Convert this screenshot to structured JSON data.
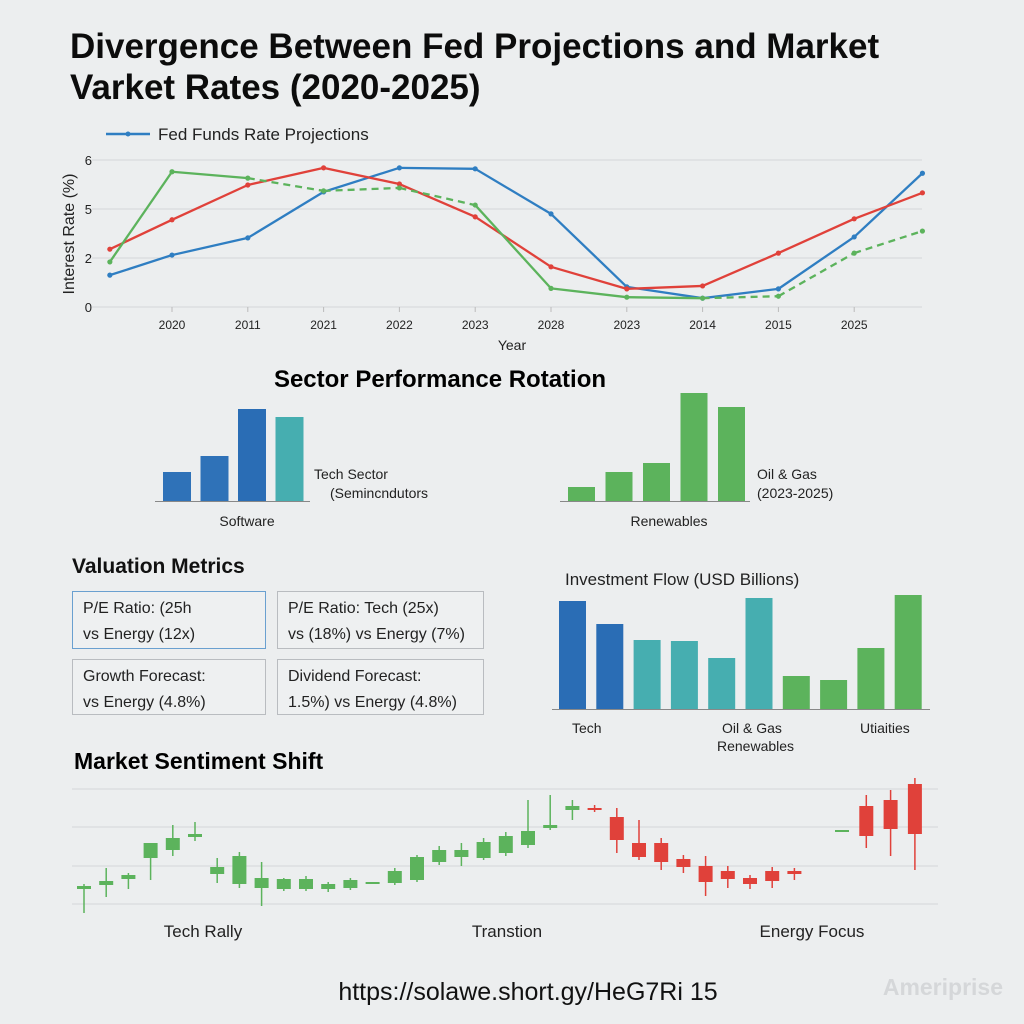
{
  "title_line1": "Divergence Between Fed Projections and Market",
  "title_line2": "Varket Rates (2020-2025)",
  "chart_data": [
    {
      "type": "line",
      "legend": "Fed Funds Rate Projections",
      "ylabel": "Interest Rate (%)",
      "xlabel": "Year",
      "x_ticks": [
        "2020",
        "2011",
        "2021",
        "2022",
        "2023",
        "2028",
        "2023",
        "2014",
        "2015",
        "2025"
      ],
      "y_ticks": [
        "0",
        "2",
        "5",
        "6"
      ],
      "grid": true,
      "note_units": "values in y-tick level units (0=\"0\",1=\"2\",2=\"5\",3=\"6\")",
      "series": [
        {
          "color": "#2f7ec2",
          "values": [
            0.65,
            1.06,
            1.41,
            2.35,
            2.84,
            2.82,
            1.9,
            0.41,
            0.18,
            0.37,
            1.43,
            2.73
          ]
        },
        {
          "color": "#e0413a",
          "values": [
            1.18,
            1.78,
            2.49,
            2.84,
            2.51,
            1.84,
            0.82,
            0.37,
            0.43,
            1.1,
            1.8,
            2.33
          ]
        },
        {
          "color": "#5cb35c",
          "values": [
            0.92,
            2.76,
            2.63,
            2.37,
            2.43,
            2.08,
            0.38,
            0.2,
            0.18,
            0.22,
            1.1,
            1.55
          ],
          "dashed_from_to": [
            [
              2,
              5
            ],
            [
              8,
              11
            ]
          ]
        }
      ]
    },
    {
      "type": "bar",
      "title": "Sector Performance Rotation",
      "groups": [
        {
          "label": "Software",
          "annotation": [
            "Tech Sector",
            "(Semincndutors"
          ],
          "values": [
            29,
            45,
            92,
            84
          ],
          "colors": [
            "#2f72b8",
            "#2f72b8",
            "#2a6db5",
            "#46aeb0"
          ]
        },
        {
          "label": "Renewables",
          "annotation": [
            "Oil & Gas",
            "(2023-2025)"
          ],
          "values": [
            14,
            29,
            38,
            108,
            94
          ],
          "colors": [
            "#5cb35c",
            "#5cb35c",
            "#5cb35c",
            "#5cb35c",
            "#5cb35c"
          ]
        }
      ]
    },
    {
      "type": "bar",
      "title": "Investment Flow (USD Billions)",
      "x_labels": [
        "Tech",
        "Oil & Gas",
        "Renewables",
        "Utiaities"
      ],
      "values": [
        108,
        85,
        69,
        68,
        51,
        111,
        33,
        29,
        61,
        114
      ],
      "colors": [
        "#2a6db5",
        "#2a6db5",
        "#46aeb0",
        "#46aeb0",
        "#46aeb0",
        "#46aeb0",
        "#5cb35c",
        "#5cb35c",
        "#5cb35c",
        "#5cb35c"
      ]
    },
    {
      "type": "candlestick",
      "title": "Market Sentiment Shift",
      "phase_labels": [
        "Tech Rally",
        "Transtion",
        "Energy Focus"
      ],
      "up_color": "#5cb35c",
      "down_color": "#e0413a",
      "candles": [
        [
          31,
          34,
          36,
          7,
          "u"
        ],
        [
          35,
          39,
          52,
          23,
          "u"
        ],
        [
          41,
          45,
          47,
          31,
          "u"
        ],
        [
          62,
          77,
          77,
          40,
          "u"
        ],
        [
          70,
          82,
          95,
          64,
          "u"
        ],
        [
          83,
          86,
          98,
          79,
          "u"
        ],
        [
          46,
          53,
          62,
          37,
          "u"
        ],
        [
          36,
          64,
          68,
          32,
          "u"
        ],
        [
          32,
          42,
          58,
          14,
          "u"
        ],
        [
          31,
          41,
          42,
          29,
          "u"
        ],
        [
          31,
          41,
          44,
          29,
          "u"
        ],
        [
          31,
          36,
          38,
          28,
          "u"
        ],
        [
          32,
          40,
          42,
          30,
          "u"
        ],
        [
          36,
          38,
          38,
          36,
          "u"
        ],
        [
          37,
          49,
          52,
          35,
          "u"
        ],
        [
          40,
          63,
          65,
          38,
          "u"
        ],
        [
          58,
          70,
          74,
          55,
          "u"
        ],
        [
          63,
          70,
          77,
          54,
          "u"
        ],
        [
          62,
          78,
          82,
          60,
          "u"
        ],
        [
          67,
          84,
          88,
          64,
          "u"
        ],
        [
          75,
          89,
          120,
          72,
          "u"
        ],
        [
          92,
          95,
          125,
          90,
          "u"
        ],
        [
          110,
          114,
          120,
          100,
          "u"
        ],
        [
          110,
          112,
          115,
          108,
          "d"
        ],
        [
          103,
          80,
          112,
          67,
          "d"
        ],
        [
          77,
          63,
          100,
          60,
          "d"
        ],
        [
          77,
          58,
          82,
          50,
          "d"
        ],
        [
          61,
          53,
          65,
          47,
          "d"
        ],
        [
          54,
          38,
          64,
          24,
          "d"
        ],
        [
          49,
          41,
          54,
          32,
          "d"
        ],
        [
          42,
          36,
          45,
          31,
          "d"
        ],
        [
          49,
          39,
          53,
          32,
          "d"
        ],
        [
          49,
          46,
          52,
          40,
          "d"
        ],
        [
          88,
          90,
          90,
          88,
          "u"
        ],
        [
          114,
          84,
          125,
          72,
          "d"
        ],
        [
          120,
          91,
          130,
          64,
          "d"
        ],
        [
          136,
          86,
          142,
          50,
          "d"
        ]
      ]
    }
  ],
  "valuation": {
    "title": "Valuation Metrics",
    "boxes": [
      {
        "line1": "P/E Ratio: (25h",
        "line2": "vs Energy (12x)"
      },
      {
        "line1": "P/E Ratio: Tech (25x)",
        "line2": "vs (18%) vs Energy (7%)"
      },
      {
        "line1": "Growth Forecast:",
        "line2": " vs Energy (4.8%)"
      },
      {
        "line1": "Dividend Forecast:",
        "line2": " 1.5%) vs Energy (4.8%)"
      }
    ]
  },
  "footer_url": "https://solawe.short.gy/HeG7Ri 15",
  "watermark": "Ameriprise"
}
